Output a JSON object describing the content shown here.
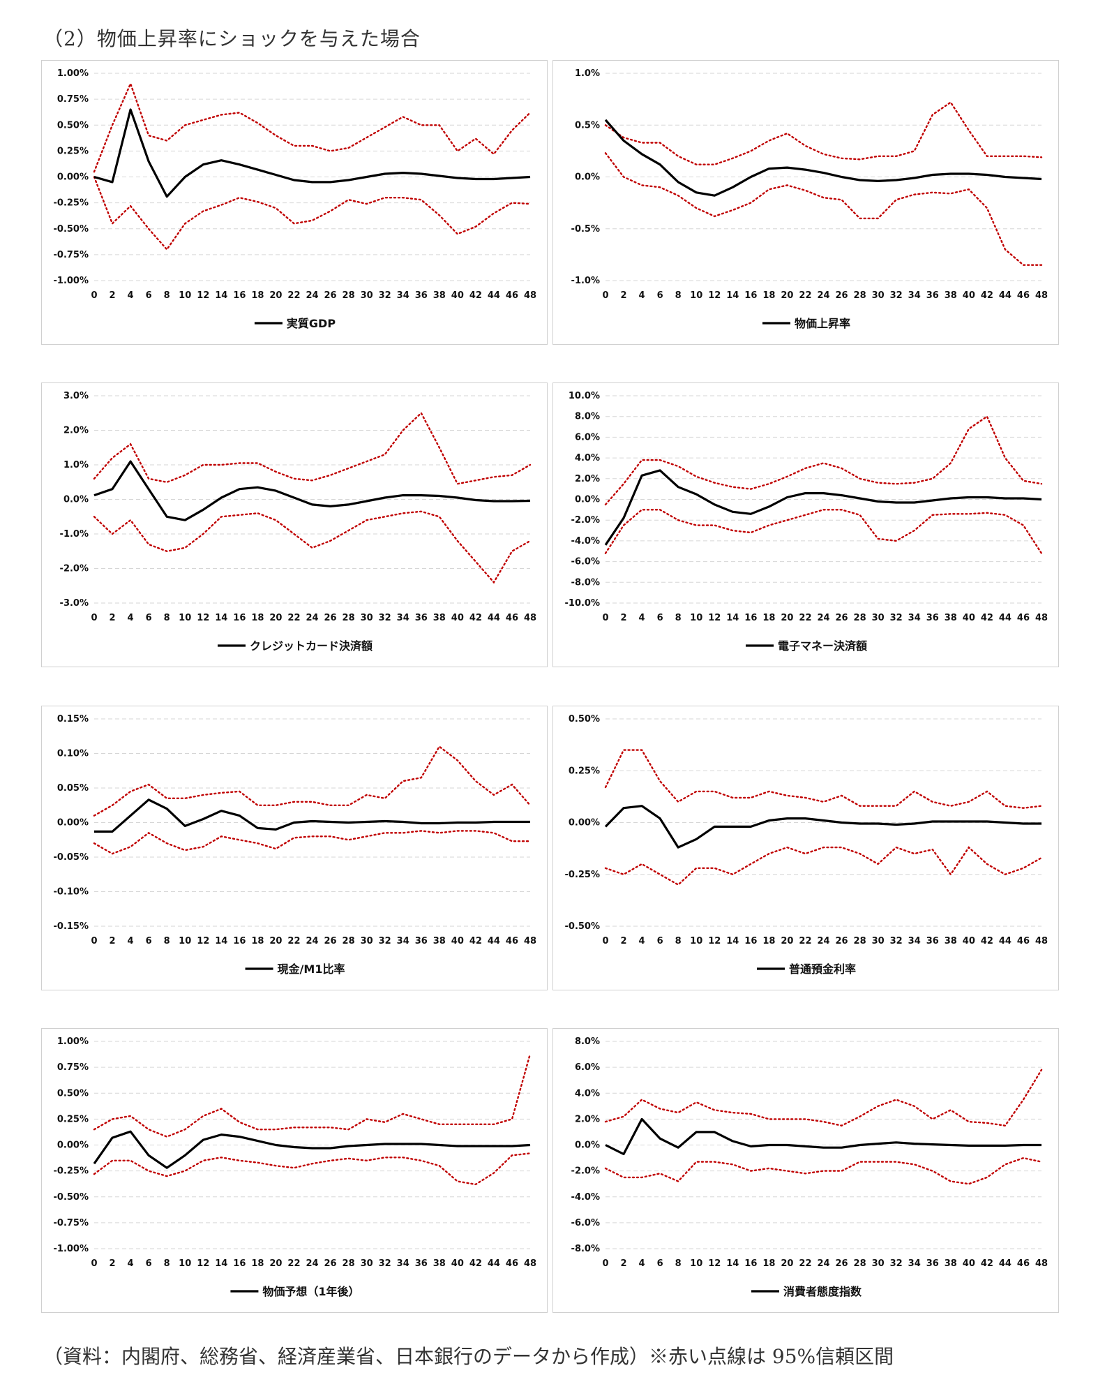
{
  "title": "（2）物価上昇率にショックを与えた場合",
  "note": "（資料：内閣府、総務省、経済産業省、日本銀行のデータから作成）※赤い点線は 95%信頼区間",
  "colors": {
    "response": "#000000",
    "confidence_band": "#c00000",
    "grid": "#d6d6d6"
  },
  "chart_data": [
    {
      "type": "line",
      "legend": "実質GDP",
      "ylim": [
        -1.0,
        1.0
      ],
      "ystep": 0.25,
      "decimals": 2,
      "x": [
        0,
        2,
        4,
        6,
        8,
        10,
        12,
        14,
        16,
        18,
        20,
        22,
        24,
        26,
        28,
        30,
        32,
        34,
        36,
        38,
        40,
        42,
        44,
        46,
        48
      ],
      "median": [
        0.0,
        -0.05,
        0.65,
        0.15,
        -0.19,
        0.0,
        0.12,
        0.16,
        0.12,
        0.07,
        0.02,
        -0.03,
        -0.05,
        -0.05,
        -0.03,
        0.0,
        0.03,
        0.04,
        0.03,
        0.01,
        -0.01,
        -0.02,
        -0.02,
        -0.01,
        0.0
      ],
      "upper": [
        0.05,
        0.5,
        0.9,
        0.4,
        0.35,
        0.5,
        0.55,
        0.6,
        0.62,
        0.52,
        0.4,
        0.3,
        0.3,
        0.25,
        0.28,
        0.38,
        0.48,
        0.58,
        0.5,
        0.5,
        0.25,
        0.37,
        0.22,
        0.45,
        0.62
      ],
      "lower": [
        0.0,
        -0.45,
        -0.28,
        -0.5,
        -0.7,
        -0.45,
        -0.33,
        -0.27,
        -0.2,
        -0.24,
        -0.3,
        -0.45,
        -0.42,
        -0.33,
        -0.22,
        -0.26,
        -0.2,
        -0.2,
        -0.22,
        -0.37,
        -0.55,
        -0.48,
        -0.35,
        -0.25,
        -0.26
      ]
    },
    {
      "type": "line",
      "legend": "物価上昇率",
      "ylim": [
        -1.0,
        1.0
      ],
      "ystep": 0.5,
      "decimals": 1,
      "x": [
        0,
        2,
        4,
        6,
        8,
        10,
        12,
        14,
        16,
        18,
        20,
        22,
        24,
        26,
        28,
        30,
        32,
        34,
        36,
        38,
        40,
        42,
        44,
        46,
        48
      ],
      "median": [
        0.55,
        0.35,
        0.22,
        0.12,
        -0.05,
        -0.15,
        -0.18,
        -0.1,
        0.0,
        0.08,
        0.09,
        0.07,
        0.04,
        0.0,
        -0.03,
        -0.04,
        -0.03,
        -0.01,
        0.02,
        0.03,
        0.03,
        0.02,
        0.0,
        -0.01,
        -0.02
      ],
      "upper": [
        0.5,
        0.38,
        0.33,
        0.33,
        0.2,
        0.12,
        0.12,
        0.18,
        0.25,
        0.35,
        0.42,
        0.3,
        0.22,
        0.18,
        0.17,
        0.2,
        0.2,
        0.25,
        0.6,
        0.72,
        0.45,
        0.2,
        0.2,
        0.2,
        0.19
      ],
      "lower": [
        0.23,
        0.0,
        -0.08,
        -0.1,
        -0.18,
        -0.3,
        -0.38,
        -0.32,
        -0.25,
        -0.12,
        -0.08,
        -0.13,
        -0.2,
        -0.22,
        -0.4,
        -0.4,
        -0.22,
        -0.17,
        -0.15,
        -0.16,
        -0.12,
        -0.3,
        -0.7,
        -0.85,
        -0.85
      ]
    },
    {
      "type": "line",
      "legend": "クレジットカード決済額",
      "ylim": [
        -3.0,
        3.0
      ],
      "ystep": 1.0,
      "decimals": 1,
      "x": [
        0,
        2,
        4,
        6,
        8,
        10,
        12,
        14,
        16,
        18,
        20,
        22,
        24,
        26,
        28,
        30,
        32,
        34,
        36,
        38,
        40,
        42,
        44,
        46,
        48
      ],
      "median": [
        0.12,
        0.3,
        1.1,
        0.3,
        -0.5,
        -0.6,
        -0.3,
        0.05,
        0.3,
        0.35,
        0.25,
        0.05,
        -0.15,
        -0.2,
        -0.15,
        -0.05,
        0.05,
        0.12,
        0.12,
        0.1,
        0.05,
        -0.02,
        -0.05,
        -0.05,
        -0.04
      ],
      "upper": [
        0.6,
        1.2,
        1.6,
        0.6,
        0.5,
        0.7,
        1.0,
        1.0,
        1.05,
        1.05,
        0.8,
        0.6,
        0.55,
        0.7,
        0.9,
        1.1,
        1.3,
        2.0,
        2.5,
        1.5,
        0.45,
        0.55,
        0.65,
        0.7,
        1.0
      ],
      "lower": [
        -0.5,
        -1.0,
        -0.6,
        -1.3,
        -1.5,
        -1.4,
        -1.0,
        -0.5,
        -0.45,
        -0.4,
        -0.6,
        -1.0,
        -1.4,
        -1.2,
        -0.9,
        -0.6,
        -0.5,
        -0.4,
        -0.35,
        -0.5,
        -1.2,
        -1.8,
        -2.4,
        -1.5,
        -1.2
      ]
    },
    {
      "type": "line",
      "legend": "電子マネー決済額",
      "ylim": [
        -10.0,
        10.0
      ],
      "ystep": 2.0,
      "decimals": 1,
      "x": [
        0,
        2,
        4,
        6,
        8,
        10,
        12,
        14,
        16,
        18,
        20,
        22,
        24,
        26,
        28,
        30,
        32,
        34,
        36,
        38,
        40,
        42,
        44,
        46,
        48
      ],
      "median": [
        -4.4,
        -1.8,
        2.3,
        2.8,
        1.2,
        0.5,
        -0.5,
        -1.2,
        -1.4,
        -0.7,
        0.2,
        0.6,
        0.6,
        0.4,
        0.1,
        -0.2,
        -0.3,
        -0.3,
        -0.1,
        0.1,
        0.2,
        0.2,
        0.1,
        0.1,
        0.0
      ],
      "upper": [
        -0.5,
        1.5,
        3.8,
        3.8,
        3.2,
        2.2,
        1.6,
        1.2,
        1.0,
        1.5,
        2.2,
        3.0,
        3.5,
        3.0,
        2.0,
        1.6,
        1.5,
        1.6,
        2.0,
        3.5,
        6.8,
        8.0,
        4.0,
        1.8,
        1.5
      ],
      "lower": [
        -5.2,
        -2.5,
        -1.0,
        -1.0,
        -2.0,
        -2.5,
        -2.5,
        -3.0,
        -3.2,
        -2.5,
        -2.0,
        -1.5,
        -1.0,
        -1.0,
        -1.5,
        -3.8,
        -4.0,
        -3.0,
        -1.5,
        -1.4,
        -1.4,
        -1.3,
        -1.5,
        -2.5,
        -5.2
      ]
    },
    {
      "type": "line",
      "legend": "現金/M1比率",
      "ylim": [
        -0.15,
        0.15
      ],
      "ystep": 0.05,
      "decimals": 2,
      "x": [
        0,
        2,
        4,
        6,
        8,
        10,
        12,
        14,
        16,
        18,
        20,
        22,
        24,
        26,
        28,
        30,
        32,
        34,
        36,
        38,
        40,
        42,
        44,
        46,
        48
      ],
      "median": [
        -0.013,
        -0.013,
        0.01,
        0.033,
        0.02,
        -0.005,
        0.005,
        0.017,
        0.01,
        -0.008,
        -0.01,
        0.0,
        0.002,
        0.001,
        0.0,
        0.001,
        0.002,
        0.001,
        -0.001,
        -0.001,
        0.0,
        0.0,
        0.001,
        0.001,
        0.001
      ],
      "upper": [
        0.01,
        0.025,
        0.045,
        0.055,
        0.035,
        0.035,
        0.04,
        0.043,
        0.045,
        0.025,
        0.025,
        0.03,
        0.03,
        0.025,
        0.025,
        0.04,
        0.035,
        0.06,
        0.065,
        0.11,
        0.09,
        0.06,
        0.04,
        0.055,
        0.025
      ],
      "lower": [
        -0.03,
        -0.045,
        -0.035,
        -0.015,
        -0.03,
        -0.04,
        -0.035,
        -0.02,
        -0.025,
        -0.03,
        -0.038,
        -0.022,
        -0.02,
        -0.02,
        -0.025,
        -0.02,
        -0.015,
        -0.015,
        -0.012,
        -0.015,
        -0.012,
        -0.012,
        -0.015,
        -0.027,
        -0.027
      ]
    },
    {
      "type": "line",
      "legend": "普通預金利率",
      "ylim": [
        -0.5,
        0.5
      ],
      "ystep": 0.25,
      "decimals": 2,
      "x": [
        0,
        2,
        4,
        6,
        8,
        10,
        12,
        14,
        16,
        18,
        20,
        22,
        24,
        26,
        28,
        30,
        32,
        34,
        36,
        38,
        40,
        42,
        44,
        46,
        48
      ],
      "median": [
        -0.02,
        0.07,
        0.08,
        0.02,
        -0.12,
        -0.08,
        -0.02,
        -0.02,
        -0.02,
        0.01,
        0.02,
        0.02,
        0.01,
        0.0,
        -0.005,
        -0.005,
        -0.01,
        -0.005,
        0.005,
        0.005,
        0.005,
        0.005,
        0.0,
        -0.005,
        -0.005
      ],
      "upper": [
        0.17,
        0.35,
        0.35,
        0.2,
        0.1,
        0.15,
        0.15,
        0.12,
        0.12,
        0.15,
        0.13,
        0.12,
        0.1,
        0.13,
        0.08,
        0.08,
        0.08,
        0.15,
        0.1,
        0.08,
        0.1,
        0.15,
        0.08,
        0.07,
        0.08
      ],
      "lower": [
        -0.22,
        -0.25,
        -0.2,
        -0.25,
        -0.3,
        -0.22,
        -0.22,
        -0.25,
        -0.2,
        -0.15,
        -0.12,
        -0.15,
        -0.12,
        -0.12,
        -0.15,
        -0.2,
        -0.12,
        -0.15,
        -0.13,
        -0.25,
        -0.12,
        -0.2,
        -0.25,
        -0.22,
        -0.17
      ]
    },
    {
      "type": "line",
      "legend": "物価予想（1年後）",
      "ylim": [
        -1.0,
        1.0
      ],
      "ystep": 0.25,
      "decimals": 2,
      "x": [
        0,
        2,
        4,
        6,
        8,
        10,
        12,
        14,
        16,
        18,
        20,
        22,
        24,
        26,
        28,
        30,
        32,
        34,
        36,
        38,
        40,
        42,
        44,
        46,
        48
      ],
      "median": [
        -0.18,
        0.07,
        0.13,
        -0.1,
        -0.22,
        -0.1,
        0.05,
        0.1,
        0.08,
        0.04,
        0.0,
        -0.02,
        -0.03,
        -0.03,
        -0.01,
        0.0,
        0.01,
        0.01,
        0.01,
        0.0,
        -0.01,
        -0.01,
        -0.01,
        -0.01,
        0.0
      ],
      "upper": [
        0.15,
        0.25,
        0.28,
        0.15,
        0.08,
        0.15,
        0.28,
        0.35,
        0.22,
        0.15,
        0.15,
        0.17,
        0.17,
        0.17,
        0.15,
        0.25,
        0.22,
        0.3,
        0.25,
        0.2,
        0.2,
        0.2,
        0.2,
        0.25,
        0.88
      ],
      "lower": [
        -0.28,
        -0.15,
        -0.15,
        -0.25,
        -0.3,
        -0.25,
        -0.15,
        -0.12,
        -0.15,
        -0.17,
        -0.2,
        -0.22,
        -0.18,
        -0.15,
        -0.13,
        -0.15,
        -0.12,
        -0.12,
        -0.15,
        -0.2,
        -0.35,
        -0.38,
        -0.27,
        -0.1,
        -0.08
      ]
    },
    {
      "type": "line",
      "legend": "消費者態度指数",
      "ylim": [
        -8.0,
        8.0
      ],
      "ystep": 2.0,
      "decimals": 1,
      "x": [
        0,
        2,
        4,
        6,
        8,
        10,
        12,
        14,
        16,
        18,
        20,
        22,
        24,
        26,
        28,
        30,
        32,
        34,
        36,
        38,
        40,
        42,
        44,
        46,
        48
      ],
      "median": [
        0.0,
        -0.7,
        2.0,
        0.5,
        -0.2,
        1.0,
        1.0,
        0.3,
        -0.1,
        0.0,
        0.0,
        -0.1,
        -0.2,
        -0.2,
        0.0,
        0.1,
        0.2,
        0.1,
        0.05,
        0.0,
        -0.05,
        -0.05,
        -0.05,
        0.0,
        0.0
      ],
      "upper": [
        1.8,
        2.2,
        3.5,
        2.8,
        2.5,
        3.3,
        2.7,
        2.5,
        2.4,
        2.0,
        2.0,
        2.0,
        1.8,
        1.5,
        2.2,
        3.0,
        3.5,
        3.0,
        2.0,
        2.7,
        1.8,
        1.7,
        1.5,
        3.5,
        5.8
      ],
      "lower": [
        -1.8,
        -2.5,
        -2.5,
        -2.2,
        -2.8,
        -1.3,
        -1.3,
        -1.5,
        -2.0,
        -1.8,
        -2.0,
        -2.2,
        -2.0,
        -2.0,
        -1.3,
        -1.3,
        -1.3,
        -1.5,
        -2.0,
        -2.8,
        -3.0,
        -2.5,
        -1.5,
        -1.0,
        -1.3
      ]
    }
  ]
}
